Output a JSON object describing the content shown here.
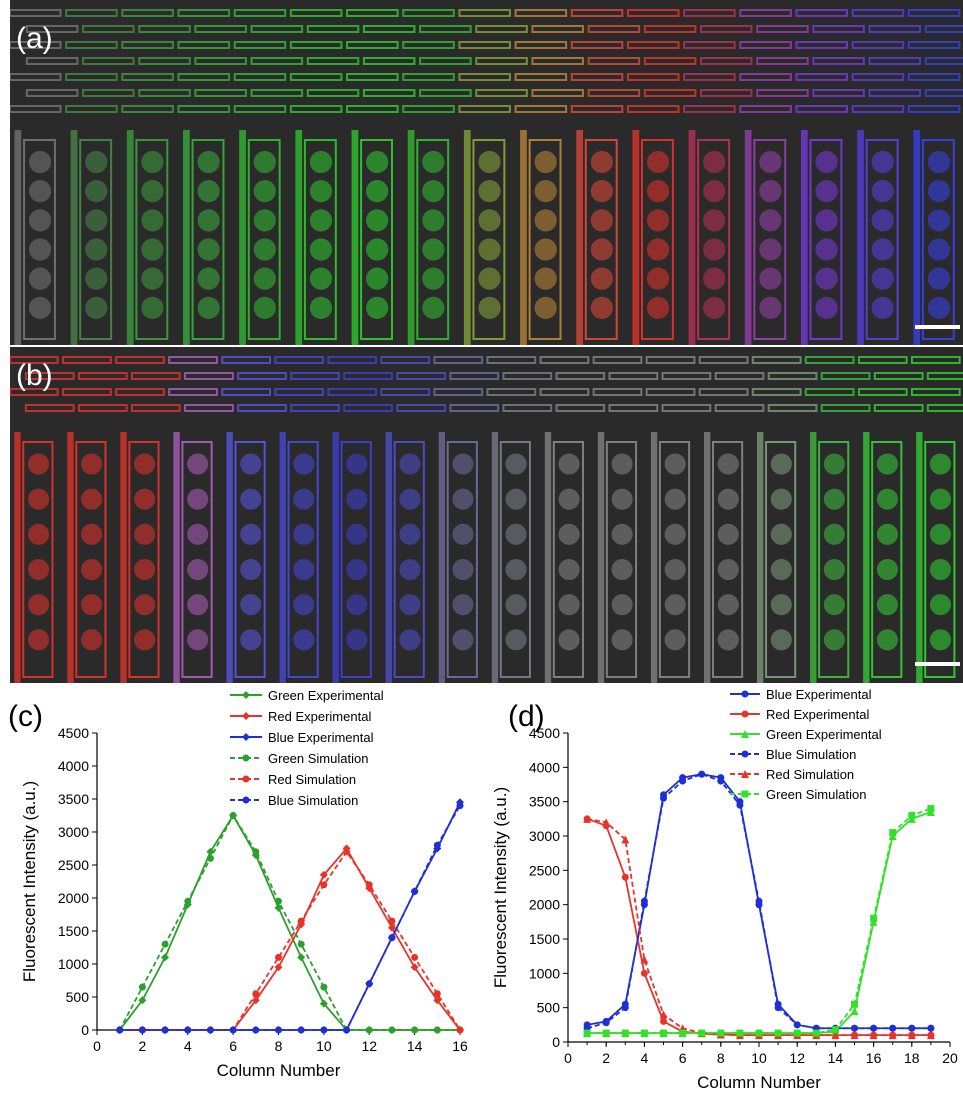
{
  "panel_a": {
    "label": "(a)"
  },
  "panel_b": {
    "label": "(b)"
  },
  "panel_c": {
    "label": "(c)"
  },
  "panel_d": {
    "label": "(d)"
  },
  "colors": {
    "green": "#2ca02c",
    "red": "#e8332b",
    "blue": "#1f2fd6",
    "green_d": "#33e02a"
  },
  "image_a_colors": [
    "#777777",
    "#4a8a4a",
    "#3fa03f",
    "#3bb03b",
    "#33bd33",
    "#2ecb2e",
    "#2ed22e",
    "#32c032",
    "#8aa83a",
    "#c08a3a",
    "#e24a3a",
    "#e8332b",
    "#c0305a",
    "#9a40b0",
    "#7a3ae0",
    "#5a40e8",
    "#3a40f0"
  ],
  "image_b_colors": [
    "#e8332b",
    "#e8332b",
    "#e8332b",
    "#b060c0",
    "#5858e8",
    "#4a4ae0",
    "#4040d8",
    "#5050d0",
    "#7070a0",
    "#808090",
    "#888888",
    "#888888",
    "#888888",
    "#888888",
    "#80a080",
    "#40c040",
    "#38d038",
    "#30d830"
  ],
  "chart_data": [
    {
      "type": "line",
      "panel": "(c)",
      "xlabel": "Column Number",
      "ylabel": "Fluorescent Intensity (a.u.)",
      "xlim": [
        0,
        16
      ],
      "ylim": [
        0,
        4500
      ],
      "xticks": [
        "0",
        "2",
        "4",
        "6",
        "8",
        "10",
        "12",
        "14",
        "16"
      ],
      "yticks": [
        "0",
        "500",
        "1000",
        "1500",
        "2000",
        "2500",
        "3000",
        "3500",
        "4000",
        "4500"
      ],
      "legend_position": "top-right",
      "series": [
        {
          "name": "Green Experimental",
          "color": "#2ca02c",
          "style": "solid",
          "marker": "diamond",
          "x": [
            1,
            2,
            3,
            4,
            5,
            6,
            7,
            8,
            9,
            10,
            11,
            12,
            13,
            14,
            15,
            16
          ],
          "y": [
            0,
            450,
            1100,
            1900,
            2700,
            3250,
            2650,
            1850,
            1100,
            400,
            0,
            0,
            0,
            0,
            0,
            0
          ]
        },
        {
          "name": "Red Experimental",
          "color": "#e8332b",
          "style": "solid",
          "marker": "diamond",
          "x": [
            1,
            2,
            3,
            4,
            5,
            6,
            7,
            8,
            9,
            10,
            11,
            12,
            13,
            14,
            15,
            16
          ],
          "y": [
            0,
            0,
            0,
            0,
            0,
            0,
            450,
            950,
            1600,
            2350,
            2750,
            2150,
            1550,
            950,
            450,
            0
          ]
        },
        {
          "name": "Blue Experimental",
          "color": "#1f2fd6",
          "style": "solid",
          "marker": "diamond",
          "x": [
            1,
            2,
            3,
            4,
            5,
            6,
            7,
            8,
            9,
            10,
            11,
            12,
            13,
            14,
            15,
            16
          ],
          "y": [
            0,
            0,
            0,
            0,
            0,
            0,
            0,
            0,
            0,
            0,
            0,
            700,
            1400,
            2100,
            2750,
            3450
          ]
        },
        {
          "name": "Green Simulation",
          "color": "#2ca02c",
          "style": "dashed",
          "marker": "circle",
          "x": [
            1,
            2,
            3,
            4,
            5,
            6,
            7,
            8,
            9,
            10,
            11,
            12,
            13,
            14,
            15,
            16
          ],
          "y": [
            0,
            650,
            1300,
            1950,
            2600,
            3250,
            2700,
            1950,
            1300,
            650,
            0,
            0,
            0,
            0,
            0,
            0
          ]
        },
        {
          "name": "Red Simulation",
          "color": "#e8332b",
          "style": "dashed",
          "marker": "circle",
          "x": [
            1,
            2,
            3,
            4,
            5,
            6,
            7,
            8,
            9,
            10,
            11,
            12,
            13,
            14,
            15,
            16
          ],
          "y": [
            0,
            0,
            0,
            0,
            0,
            0,
            550,
            1100,
            1650,
            2200,
            2700,
            2200,
            1650,
            1100,
            550,
            0
          ]
        },
        {
          "name": "Blue Simulation",
          "color": "#1f2fd6",
          "style": "dashed",
          "marker": "circle",
          "x": [
            1,
            2,
            3,
            4,
            5,
            6,
            7,
            8,
            9,
            10,
            11,
            12,
            13,
            14,
            15,
            16
          ],
          "y": [
            0,
            0,
            0,
            0,
            0,
            0,
            0,
            0,
            0,
            0,
            0,
            700,
            1400,
            2100,
            2800,
            3400
          ]
        }
      ]
    },
    {
      "type": "line",
      "panel": "(d)",
      "xlabel": "Column Number",
      "ylabel": "Fluorescent Intensity (a.u.)",
      "xlim": [
        0,
        20
      ],
      "ylim": [
        0,
        4500
      ],
      "xticks": [
        "0",
        "2",
        "4",
        "6",
        "8",
        "10",
        "12",
        "14",
        "16",
        "18",
        "20"
      ],
      "yticks": [
        "0",
        "500",
        "1000",
        "1500",
        "2000",
        "2500",
        "3000",
        "3500",
        "4000",
        "4500"
      ],
      "legend_position": "top-right",
      "series": [
        {
          "name": "Blue Experimental",
          "color": "#1f2fd6",
          "style": "solid",
          "marker": "circle",
          "x": [
            1,
            2,
            3,
            4,
            5,
            6,
            7,
            8,
            9,
            10,
            11,
            12,
            13,
            14,
            15,
            16,
            17,
            18,
            19
          ],
          "y": [
            250,
            300,
            550,
            2000,
            3600,
            3850,
            3900,
            3850,
            3500,
            2000,
            550,
            250,
            200,
            200,
            200,
            200,
            200,
            200,
            200
          ]
        },
        {
          "name": "Red Experimental",
          "color": "#e8332b",
          "style": "solid",
          "marker": "circle",
          "x": [
            1,
            2,
            3,
            4,
            5,
            6,
            7,
            8,
            9,
            10,
            11,
            12,
            13,
            14,
            15,
            16,
            17,
            18,
            19
          ],
          "y": [
            3250,
            3150,
            2400,
            1000,
            300,
            150,
            120,
            110,
            100,
            100,
            100,
            100,
            100,
            100,
            100,
            100,
            100,
            100,
            100
          ]
        },
        {
          "name": "Green Experimental",
          "color": "#33e02a",
          "style": "solid",
          "marker": "triangle",
          "x": [
            1,
            2,
            3,
            4,
            5,
            6,
            7,
            8,
            9,
            10,
            11,
            12,
            13,
            14,
            15,
            16,
            17,
            18,
            19
          ],
          "y": [
            130,
            130,
            130,
            130,
            130,
            130,
            130,
            130,
            130,
            130,
            130,
            130,
            130,
            150,
            450,
            1750,
            3000,
            3250,
            3350
          ]
        },
        {
          "name": "Blue Simulation",
          "color": "#1f2fd6",
          "style": "dashed",
          "marker": "circle",
          "x": [
            1,
            2,
            3,
            4,
            5,
            6,
            7,
            8,
            9,
            10,
            11,
            12,
            13,
            14,
            15,
            16,
            17,
            18,
            19
          ],
          "y": [
            200,
            280,
            500,
            2050,
            3550,
            3800,
            3900,
            3800,
            3450,
            2050,
            500,
            250,
            200,
            200,
            200,
            200,
            200,
            200,
            200
          ]
        },
        {
          "name": "Red Simulation",
          "color": "#e8332b",
          "style": "dashed",
          "marker": "triangle",
          "x": [
            1,
            2,
            3,
            4,
            5,
            6,
            7,
            8,
            9,
            10,
            11,
            12,
            13,
            14,
            15,
            16,
            17,
            18,
            19
          ],
          "y": [
            3250,
            3200,
            2950,
            1200,
            400,
            200,
            130,
            110,
            100,
            100,
            100,
            100,
            100,
            100,
            100,
            100,
            100,
            100,
            100
          ]
        },
        {
          "name": "Green Simulation",
          "color": "#33e02a",
          "style": "dashed",
          "marker": "square",
          "x": [
            1,
            2,
            3,
            4,
            5,
            6,
            7,
            8,
            9,
            10,
            11,
            12,
            13,
            14,
            15,
            16,
            17,
            18,
            19
          ],
          "y": [
            130,
            130,
            130,
            130,
            130,
            130,
            130,
            130,
            130,
            130,
            130,
            130,
            130,
            180,
            550,
            1800,
            3050,
            3300,
            3400
          ]
        }
      ]
    }
  ]
}
